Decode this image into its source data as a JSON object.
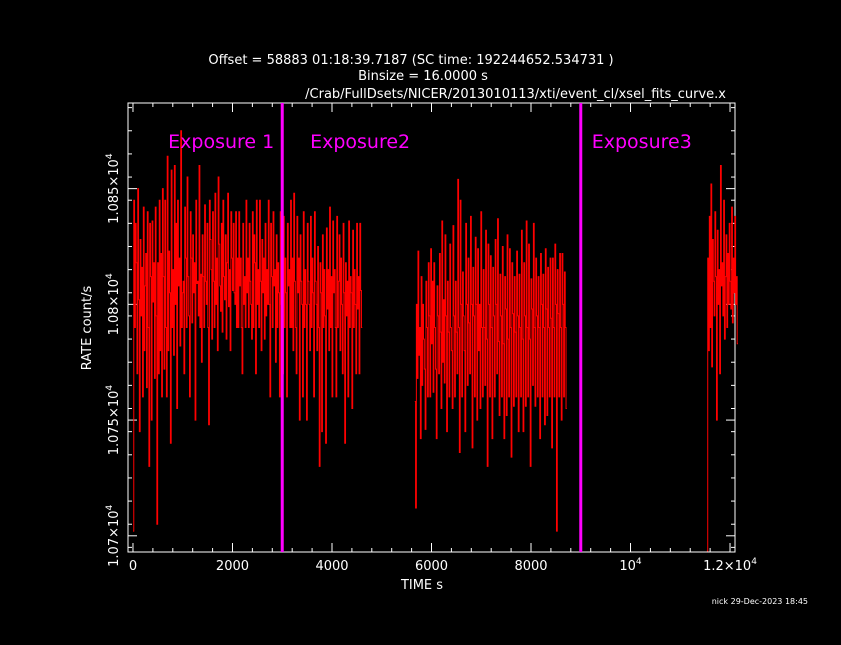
{
  "header": {
    "line1": "Offset =  58883 01:18:39.7187 (SC time:      192244652.534731 )",
    "line2": "Binsize =    16.0000     s",
    "line3": "/Crab/FullDsets/NICER/2013010113/xti/event_cl/xsel_fits_curve.x"
  },
  "footer": {
    "stamp": "nick 29-Dec-2023 18:45"
  },
  "colors": {
    "background": "#000000",
    "axes": "#ffffff",
    "data": "#ff0000",
    "marker": "#ff00ff"
  },
  "chart_data": {
    "type": "line",
    "xlabel": "TIME  s",
    "ylabel": "RATE  count/s",
    "xlim": [
      -100,
      12100
    ],
    "ylim": [
      10693,
      10887
    ],
    "x_ticks": [
      {
        "value": 0,
        "label": "0"
      },
      {
        "value": 2000,
        "label": "2000"
      },
      {
        "value": 4000,
        "label": "4000"
      },
      {
        "value": 6000,
        "label": "6000"
      },
      {
        "value": 8000,
        "label": "8000"
      },
      {
        "value": 10000,
        "label": "10",
        "exp": "4"
      },
      {
        "value": 12000,
        "label": "1.2×10",
        "exp": "4"
      }
    ],
    "y_ticks": [
      {
        "value": 10700,
        "label": "1.07×10",
        "exp": "4"
      },
      {
        "value": 10750,
        "label": "1.075×10",
        "exp": "4"
      },
      {
        "value": 10800,
        "label": "1.08×10",
        "exp": "4"
      },
      {
        "value": 10850,
        "label": "1.085×10",
        "exp": "4"
      }
    ],
    "series": [
      {
        "segments": [
          {
            "x_start": 0,
            "dt": 16,
            "values": [
              10702,
              10845,
              10790,
              10835,
              10818,
              10770,
              10850,
              10802,
              10745,
              10828,
              10795,
              10816,
              10760,
              10842,
              10780,
              10808,
              10822,
              10764,
              10840,
              10790,
              10730,
              10835,
              10812,
              10750,
              10836,
              10801,
              10818,
              10768,
              10842,
              10795,
              10705,
              10818,
              10770,
              10845,
              10780,
              10822,
              10760,
              10850,
              10812,
              10772,
              10845,
              10790,
              10760,
              10864,
              10780,
              10823,
              10805,
              10740,
              10858,
              10790,
              10815,
              10778,
              10860,
              10800,
              10835,
              10755,
              10845,
              10808,
              10820,
              10782,
              10875,
              10790,
              10805,
              10810,
              10770,
              10842,
              10820,
              10790,
              10855,
              10812,
              10795,
              10760,
              10840,
              10820,
              10792,
              10830,
              10805,
              10818,
              10750,
              10845,
              10809,
              10810,
              10795,
              10860,
              10790,
              10813,
              10775,
              10830,
              10812,
              10790,
              10843,
              10810,
              10800,
              10835,
              10790,
              10748,
              10845,
              10828,
              10815,
              10785,
              10840,
              10810,
              10790,
              10848,
              10800,
              10820,
              10780,
              10855,
              10826,
              10808,
              10797,
              10835,
              10788,
              10845,
              10812,
              10802,
              10830,
              10785,
              10818,
              10848,
              10799,
              10815,
              10780,
              10840,
              10820,
              10806,
              10835,
              10805,
              10800,
              10840,
              10790,
              10820,
              10790,
              10840,
              10808,
              10820,
              10790,
              10770,
              10835,
              10800,
              10812,
              10790,
              10845,
              10805,
              10820,
              10790,
              10835,
              10810,
              10800,
              10785,
              10840,
              10790,
              10830,
              10818,
              10770,
              10845,
              10800,
              10815,
              10790,
              10845,
              10810,
              10780,
              10828,
              10805,
              10820,
              10785,
              10835,
              10795,
              10815,
              10800,
              10845,
              10800,
              10760,
              10835,
              10812,
              10790,
              10840,
              10808,
              10815,
              10775,
              10830,
              10790,
              10818,
              10805,
              10760,
              10840,
              10800,
              10810,
              10770,
              10838,
              10790,
              10820,
              10805,
              10760,
              10835,
              10808,
              10815,
              10790,
              10845,
              10790,
              10820,
              10780,
              10848,
              10810,
              10790,
              10770,
              10838,
              10805,
              10820,
              10750,
              10830,
              10810,
              10800,
              10760,
              10840,
              10790,
              10815,
              10800,
              10750,
              10835,
              10810,
              10800,
              10780,
              10838,
              10790,
              10820,
              10805,
              10760,
              10840,
              10810,
              10800,
              10780,
              10825,
              10790,
              10730,
              10818,
              10805,
              10745,
              10830,
              10790,
              10815,
              10795,
              10740,
              10833,
              10798,
              10815,
              10780,
              10842,
              10790,
              10812,
              10760,
              10836,
              10805,
              10815,
              10790,
              10760,
              10838,
              10790,
              10810,
              10830,
              10780,
              10820,
              10800,
              10770,
              10835,
              10805,
              10740,
              10818,
              10795,
              10810,
              10760,
              10836,
              10790,
              10812,
              10805,
              10755,
              10832,
              10790,
              10815,
              10800,
              10770,
              10835,
              10798,
              10812,
              10770,
              10835,
              10806,
              10790
            ]
          },
          {
            "x_start": 5664,
            "dt": 16,
            "values": [
              10758,
              10712,
              10800,
              10768,
              10823,
              10778,
              10790,
              10742,
              10812,
              10765,
              10800,
              10785,
              10772,
              10746,
              10810,
              10790,
              10760,
              10818,
              10795,
              10760,
              10824,
              10783,
              10810,
              10762,
              10818,
              10790,
              10772,
              10742,
              10808,
              10795,
              10770,
              10822,
              10788,
              10755,
              10836,
              10775,
              10802,
              10766,
              10830,
              10795,
              10745,
              10810,
              10788,
              10760,
              10826,
              10790,
              10780,
              10755,
              10834,
              10795,
              10760,
              10810,
              10788,
              10770,
              10854,
              10790,
              10736,
              10845,
              10800,
              10760,
              10814,
              10795,
              10780,
              10745,
              10835,
              10800,
              10765,
              10820,
              10792,
              10770,
              10838,
              10800,
              10738,
              10816,
              10795,
              10760,
              10829,
              10800,
              10750,
              10824,
              10780,
              10800,
              10755,
              10840,
              10790,
              10760,
              10815,
              10790,
              10765,
              10832,
              10785,
              10730,
              10826,
              10800,
              10760,
              10821,
              10790,
              10742,
              10816,
              10795,
              10760,
              10828,
              10800,
              10770,
              10837,
              10784,
              10752,
              10813,
              10795,
              10760,
              10825,
              10783,
              10742,
              10812,
              10798,
              10752,
              10830,
              10785,
              10760,
              10824,
              10790,
              10734,
              10818,
              10796,
              10756,
              10812,
              10788,
              10760,
              10823,
              10795,
              10745,
              10813,
              10790,
              10760,
              10832,
              10785,
              10745,
              10818,
              10795,
              10756,
              10836,
              10790,
              10760,
              10826,
              10785,
              10730,
              10811,
              10798,
              10765,
              10835,
              10790,
              10756,
              10820,
              10795,
              10760,
              10812,
              10790,
              10742,
              10822,
              10800,
              10760,
              10813,
              10790,
              10748,
              10824,
              10798,
              10752,
              10816,
              10790,
              10760,
              10820,
              10794,
              10738,
              10820,
              10790,
              10760,
              10826,
              10800,
              10702,
              10815,
              10796,
              10760,
              10822,
              10790,
              10750,
              10822,
              10800,
              10760,
              10814,
              10790,
              10755
            ]
          },
          {
            "x_start": 11536,
            "dt": 16,
            "values": [
              10690,
              10820,
              10780,
              10838,
              10790,
              10852,
              10773,
              10828,
              10810,
              10795,
              10840,
              10812,
              10750,
              10832,
              10800,
              10815,
              10770,
              10860,
              10808,
              10818,
              10795,
              10845,
              10785,
              10812,
              10830,
              10790,
              10822,
              10800,
              10835,
              10810,
              10798,
              10842,
              10792,
              10820,
              10805,
              10838,
              10800,
              10812,
              10783
            ]
          }
        ]
      }
    ],
    "markers": [
      {
        "x": 3000,
        "label": "Exposure 1",
        "label_side": "left"
      },
      {
        "x": 9000,
        "label": "Exposure3",
        "label_side": "right"
      }
    ],
    "extra_labels": [
      {
        "x": 3600,
        "label": "Exposure2"
      }
    ]
  }
}
